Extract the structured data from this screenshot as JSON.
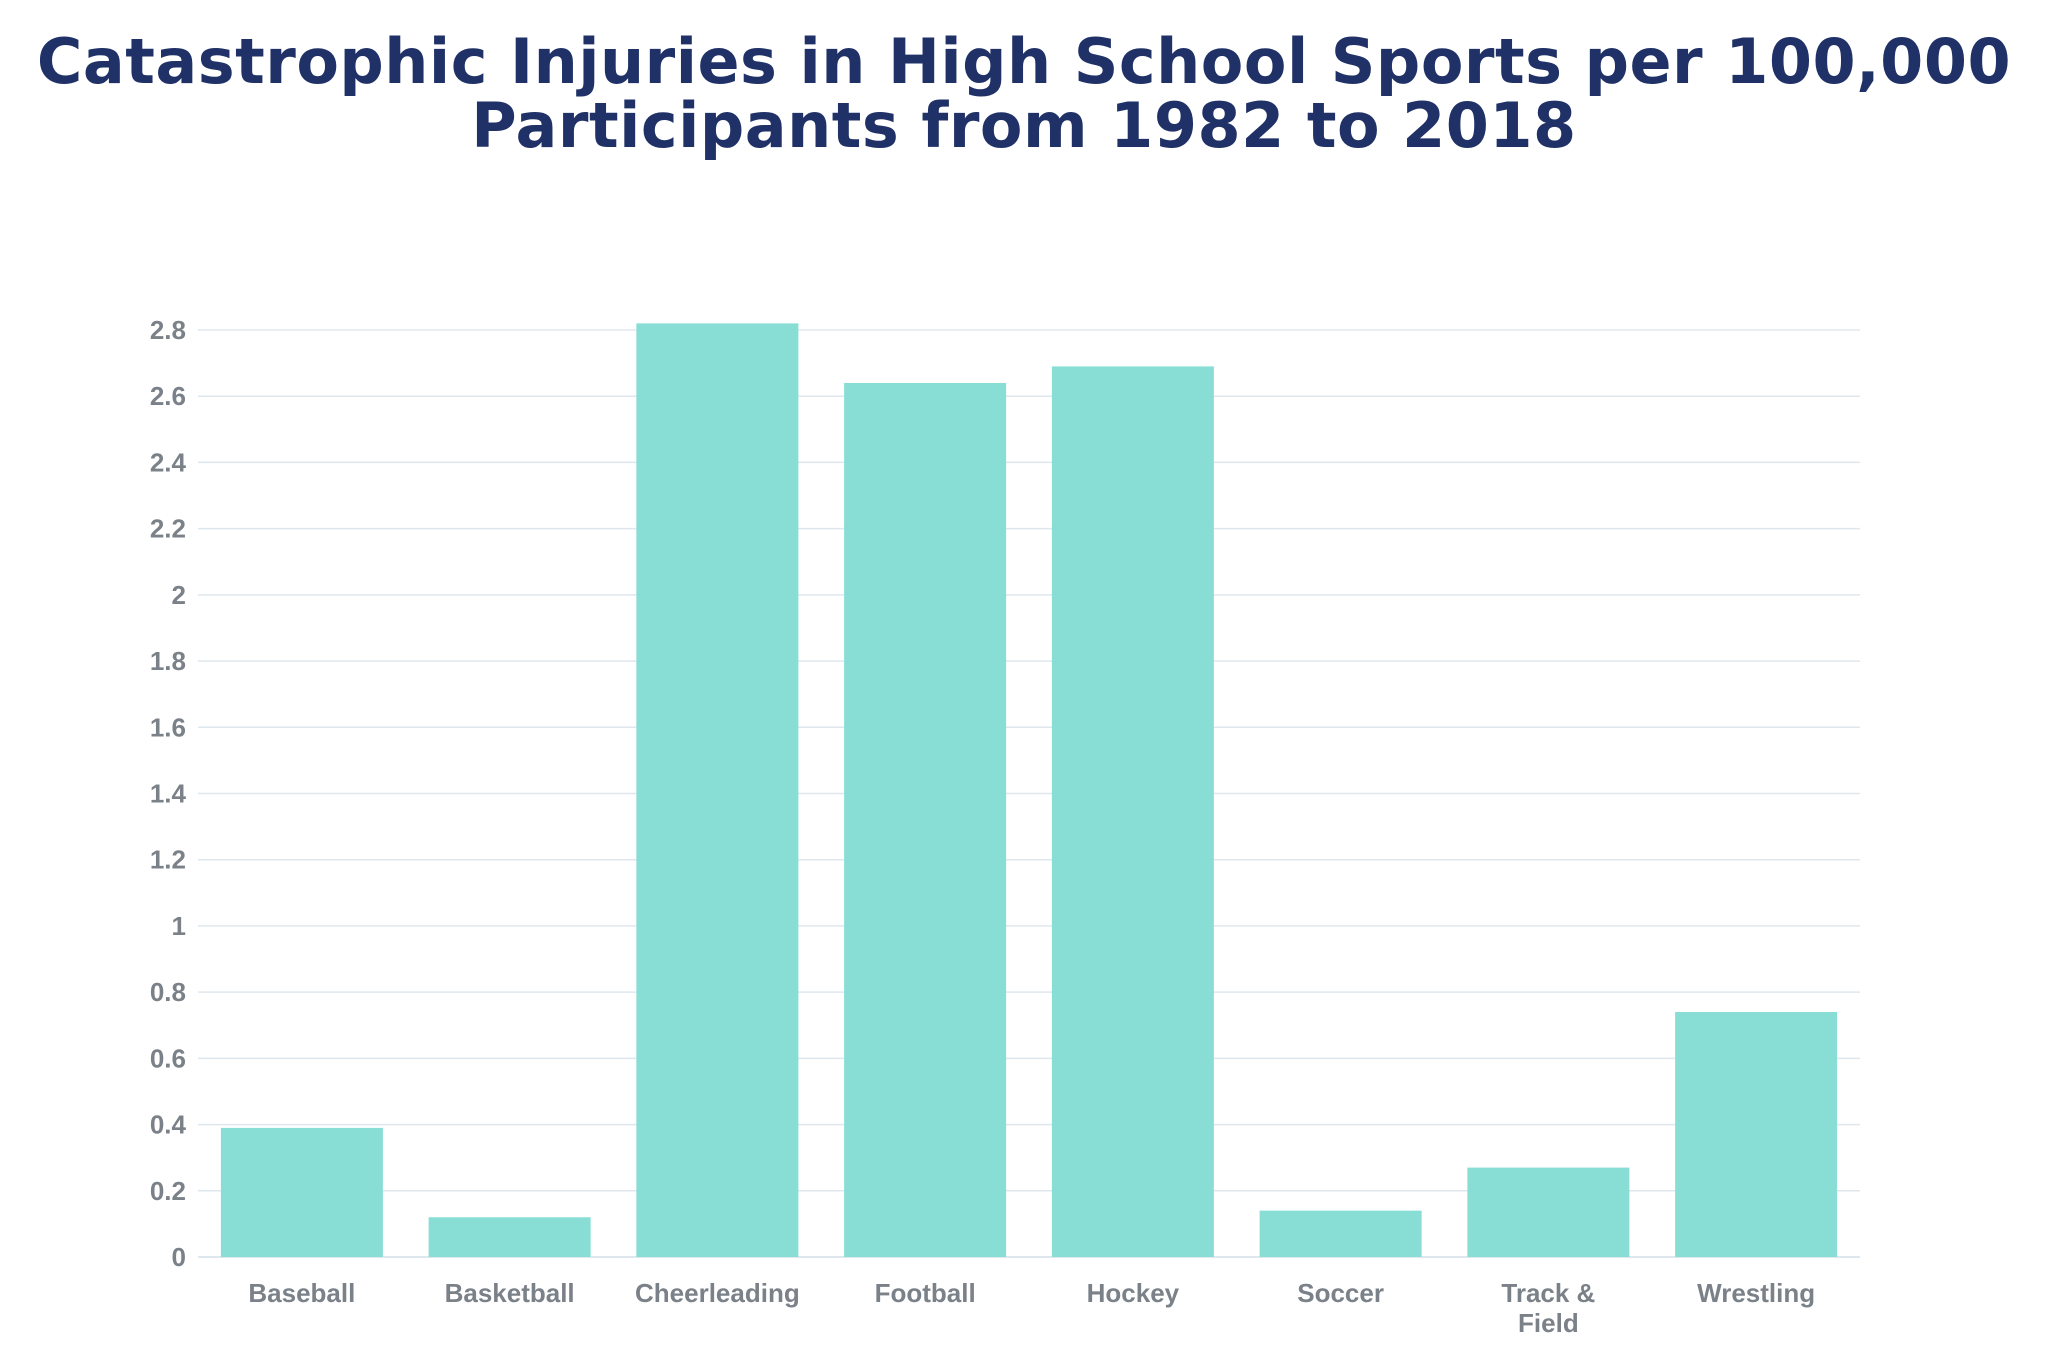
{
  "chart_data": {
    "type": "bar",
    "title": [
      "Catastrophic Injuries in High School Sports per 100,000",
      "Participants from 1982 to 2018"
    ],
    "categories": [
      [
        "Baseball"
      ],
      [
        "Basketball"
      ],
      [
        "Cheerleading"
      ],
      [
        "Football"
      ],
      [
        "Hockey"
      ],
      [
        "Soccer"
      ],
      [
        "Track &",
        "Field"
      ],
      [
        "Wrestling"
      ]
    ],
    "values": [
      0.39,
      0.12,
      2.82,
      2.64,
      2.69,
      0.14,
      0.27,
      0.74
    ],
    "ylim": [
      0,
      2.8
    ],
    "yticks": [
      "0",
      "0.2",
      "0.4",
      "0.6",
      "0.8",
      "1",
      "1.2",
      "1.4",
      "1.6",
      "1.8",
      "2",
      "2.2",
      "2.4",
      "2.6",
      "2.8"
    ],
    "grid": true,
    "colors": {
      "bar": "#88ddd5",
      "grid": "#dfe7ee",
      "title": "#1f3166",
      "labels": "#7b8189"
    }
  }
}
